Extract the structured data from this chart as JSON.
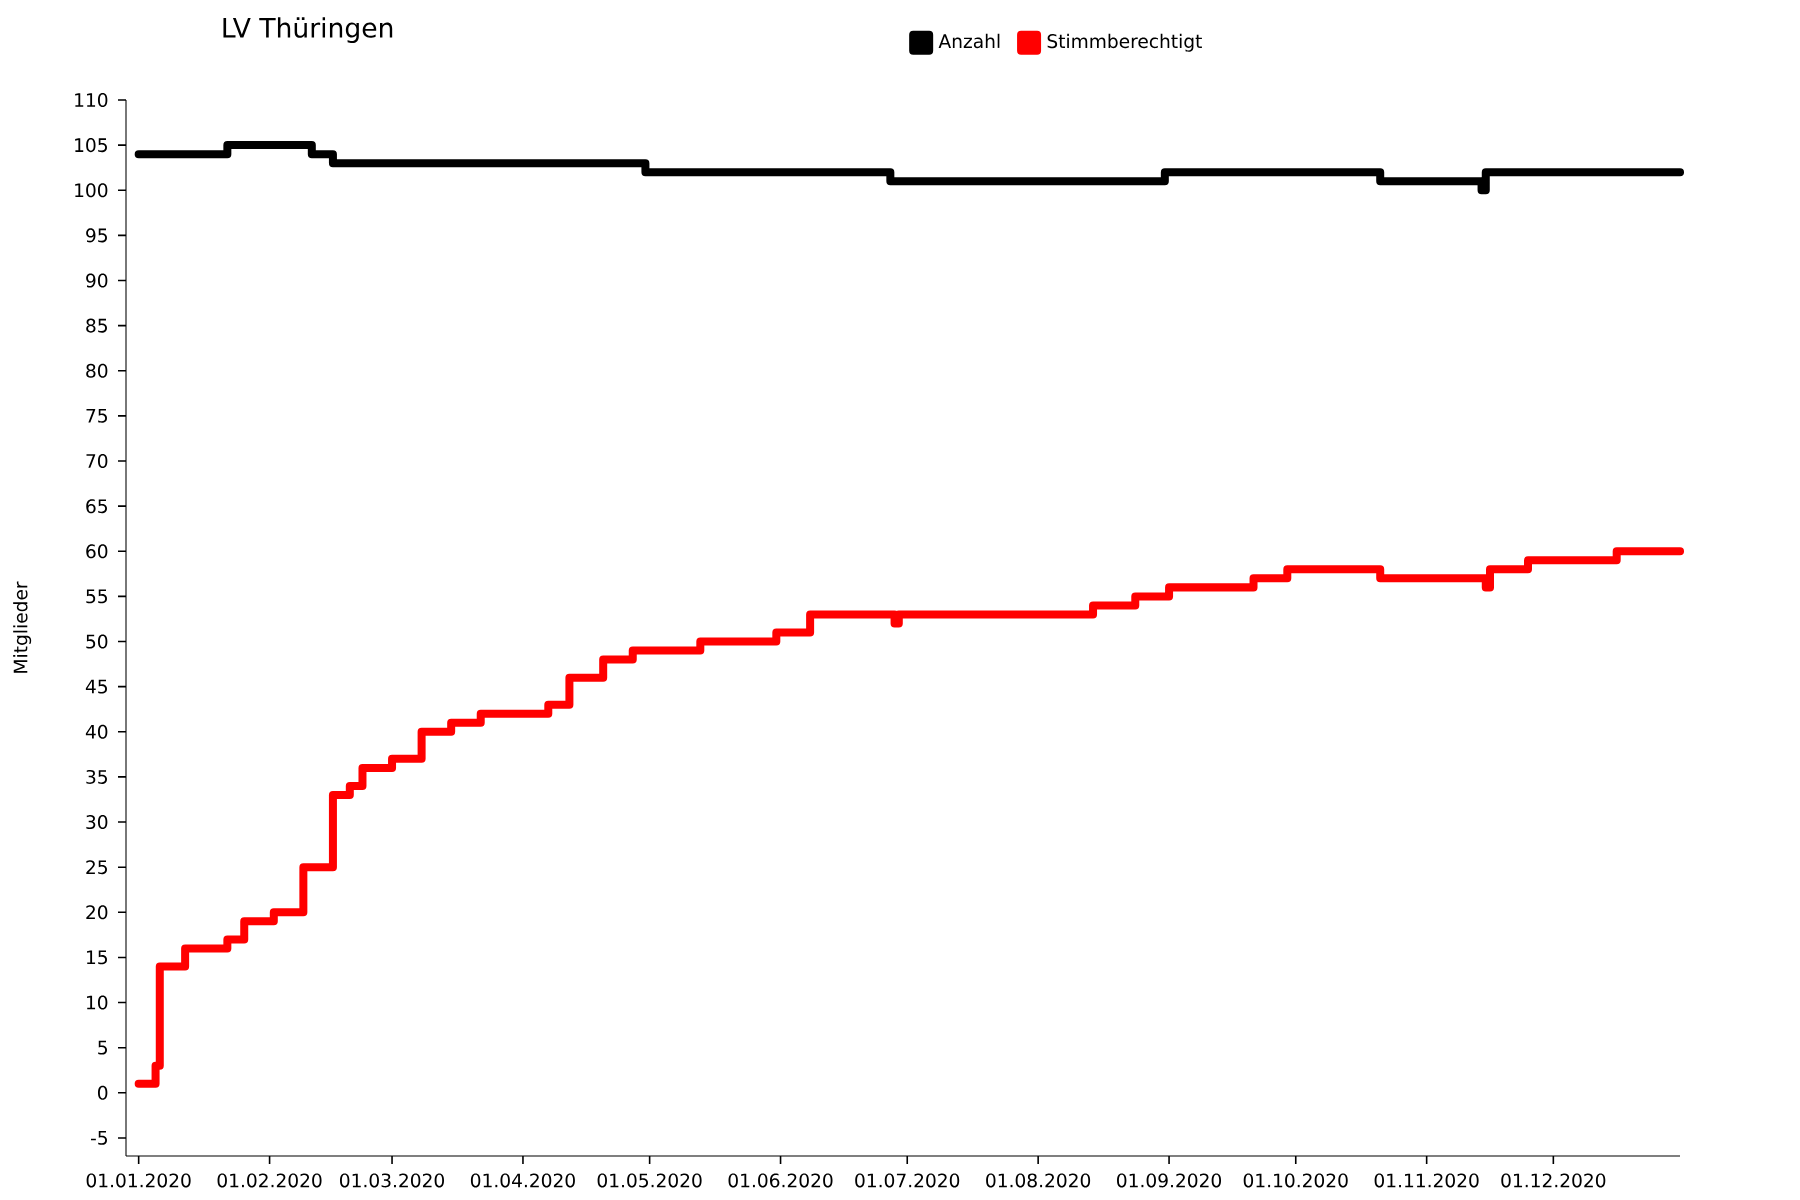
{
  "chart_data": {
    "type": "step",
    "title": "LV Thüringen",
    "ylabel": "Mitglieder",
    "xlim": [
      "2019-12-29",
      "2020-12-31"
    ],
    "ylim": [
      -7,
      110
    ],
    "xticks": [
      {
        "value": "2020-01-01",
        "label": "01.01.2020"
      },
      {
        "value": "2020-02-01",
        "label": "01.02.2020"
      },
      {
        "value": "2020-03-01",
        "label": "01.03.2020"
      },
      {
        "value": "2020-04-01",
        "label": "01.04.2020"
      },
      {
        "value": "2020-05-01",
        "label": "01.05.2020"
      },
      {
        "value": "2020-06-01",
        "label": "01.06.2020"
      },
      {
        "value": "2020-07-01",
        "label": "01.07.2020"
      },
      {
        "value": "2020-08-01",
        "label": "01.08.2020"
      },
      {
        "value": "2020-09-01",
        "label": "01.09.2020"
      },
      {
        "value": "2020-10-01",
        "label": "01.10.2020"
      },
      {
        "value": "2020-11-01",
        "label": "01.11.2020"
      },
      {
        "value": "2020-12-01",
        "label": "01.12.2020"
      }
    ],
    "yticks": [
      -5,
      0,
      5,
      10,
      15,
      20,
      25,
      30,
      35,
      40,
      45,
      50,
      55,
      60,
      65,
      70,
      75,
      80,
      85,
      90,
      95,
      100,
      105,
      110
    ],
    "legend": "top",
    "line_style": "solid",
    "series": [
      {
        "name": "Anzahl",
        "color": "#000000",
        "x": [
          "2020-01-01",
          "2020-01-22",
          "2020-02-11",
          "2020-02-16",
          "2020-04-30",
          "2020-06-27",
          "2020-08-31",
          "2020-10-21",
          "2020-11-14",
          "2020-11-15",
          "2020-12-31"
        ],
        "values": [
          104,
          105,
          104,
          103,
          102,
          101,
          102,
          101,
          100,
          102,
          102
        ]
      },
      {
        "name": "Stimmberechtigt",
        "color": "#ff0000",
        "x": [
          "2020-01-01",
          "2020-01-05",
          "2020-01-06",
          "2020-01-12",
          "2020-01-22",
          "2020-01-26",
          "2020-02-02",
          "2020-02-09",
          "2020-02-16",
          "2020-02-20",
          "2020-02-23",
          "2020-03-01",
          "2020-03-08",
          "2020-03-15",
          "2020-03-22",
          "2020-04-07",
          "2020-04-12",
          "2020-04-20",
          "2020-04-27",
          "2020-05-13",
          "2020-05-31",
          "2020-06-08",
          "2020-06-28",
          "2020-06-29",
          "2020-08-14",
          "2020-08-24",
          "2020-09-01",
          "2020-09-21",
          "2020-09-29",
          "2020-10-21",
          "2020-11-15",
          "2020-11-16",
          "2020-11-25",
          "2020-12-16",
          "2020-12-31"
        ],
        "values": [
          1,
          3,
          14,
          16,
          17,
          19,
          20,
          25,
          33,
          34,
          36,
          37,
          40,
          41,
          42,
          43,
          46,
          48,
          49,
          50,
          51,
          53,
          52,
          53,
          54,
          55,
          56,
          57,
          58,
          57,
          56,
          58,
          59,
          60,
          60
        ]
      }
    ]
  }
}
